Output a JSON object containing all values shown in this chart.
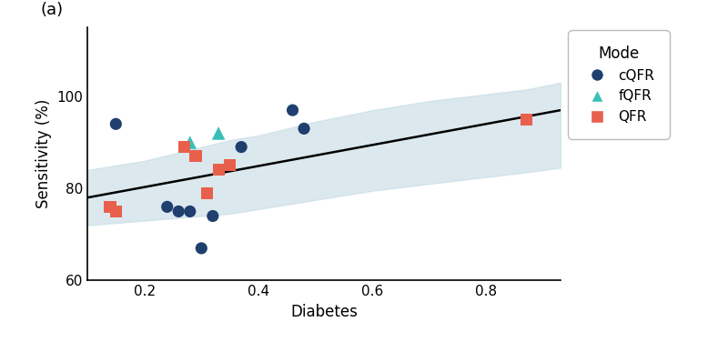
{
  "title_label": "(a)",
  "xlabel": "Diabetes",
  "ylabel": "Sensitivity (%)",
  "xlim": [
    0.1,
    0.93
  ],
  "ylim": [
    60,
    115
  ],
  "yticks": [
    60,
    80,
    100
  ],
  "xticks": [
    0.2,
    0.4,
    0.6,
    0.8
  ],
  "cQFR": {
    "x": [
      0.15,
      0.24,
      0.26,
      0.28,
      0.3,
      0.32,
      0.37,
      0.46,
      0.48
    ],
    "y": [
      94,
      76,
      75,
      75,
      67,
      74,
      89,
      97,
      93
    ],
    "color": "#1f3f6e",
    "marker": "o",
    "size": 90
  },
  "fQFR": {
    "x": [
      0.28,
      0.33
    ],
    "y": [
      90,
      92
    ],
    "color": "#3abfb8",
    "marker": "^",
    "size": 110
  },
  "QFR": {
    "x": [
      0.14,
      0.15,
      0.27,
      0.29,
      0.31,
      0.33,
      0.35,
      0.87
    ],
    "y": [
      76,
      75,
      89,
      87,
      79,
      84,
      85,
      95
    ],
    "color": "#e8604c",
    "marker": "s",
    "size": 90
  },
  "reg_line": {
    "x0": 0.1,
    "x1": 0.93,
    "y0": 78.0,
    "y1": 97.0
  },
  "ci_band": {
    "x": [
      0.1,
      0.15,
      0.2,
      0.25,
      0.3,
      0.35,
      0.4,
      0.45,
      0.5,
      0.6,
      0.7,
      0.87,
      0.93
    ],
    "y_lower": [
      72.0,
      72.5,
      73.0,
      73.5,
      74.0,
      74.5,
      75.5,
      76.5,
      77.5,
      79.5,
      81.0,
      83.5,
      84.5
    ],
    "y_upper": [
      84.0,
      85.0,
      86.0,
      87.5,
      89.0,
      90.5,
      91.5,
      93.0,
      94.5,
      97.0,
      99.0,
      101.5,
      103.0
    ]
  },
  "legend_title": "Mode",
  "background_color": "#ffffff",
  "ci_color": "#c8dde6",
  "line_color": "#000000"
}
